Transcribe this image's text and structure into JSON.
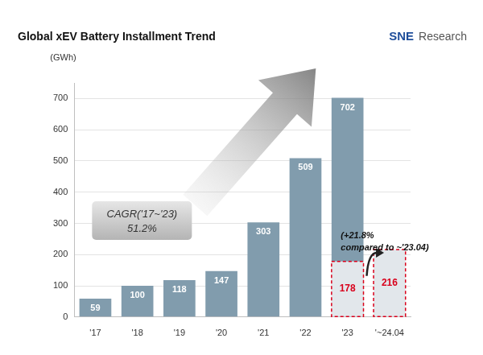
{
  "chart_data": {
    "type": "bar",
    "title": "Global xEV Battery Installment Trend",
    "source": "SNE Research",
    "ylabel": "(GWh)",
    "categories": [
      "'17",
      "'18",
      "'19",
      "'20",
      "'21",
      "'22",
      "'23",
      "'~24.04"
    ],
    "series": [
      {
        "color": "#819cad",
        "values": [
          59,
          100,
          118,
          147,
          303,
          509,
          702,
          null
        ]
      },
      {
        "color": "#d9001b",
        "line_style": "dashed",
        "values": [
          null,
          null,
          null,
          null,
          null,
          null,
          178,
          216
        ]
      }
    ],
    "ylim": [
      0,
      750
    ],
    "yticks": [
      0,
      100,
      200,
      300,
      400,
      500,
      600,
      700
    ],
    "grid": true,
    "data_labels": true,
    "annotations": [
      {
        "text": [
          "CAGR('17~'23)",
          "51.2%"
        ]
      },
      {
        "text": [
          "(+21.8%",
          "compared to ~'23.04)"
        ]
      }
    ]
  }
}
